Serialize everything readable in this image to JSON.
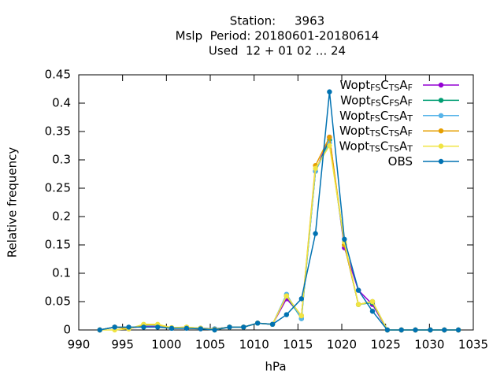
{
  "chart_data": {
    "type": "line",
    "title": [
      "Station:     3963",
      "Mslp  Period: 20180601-20180614",
      "Used  12 + 01 02 ... 24"
    ],
    "xlabel": "hPa",
    "ylabel": "Relative frequency",
    "x": [
      992.4,
      994.1,
      995.7,
      997.4,
      999.0,
      1000.6,
      1002.3,
      1003.9,
      1005.5,
      1007.2,
      1008.8,
      1010.4,
      1012.1,
      1013.7,
      1015.4,
      1017.0,
      1018.6,
      1020.3,
      1021.9,
      1023.5,
      1025.2,
      1026.8,
      1028.4,
      1030.1,
      1031.7,
      1033.3
    ],
    "series": [
      {
        "name": "Wopt_{FS}C_{TS}A_{F}",
        "color": "#9400d3",
        "values": [
          0,
          0.005,
          0.003,
          0.007,
          0.007,
          0.003,
          0.004,
          0.003,
          0.002,
          0.005,
          0.005,
          0.012,
          0.01,
          0.055,
          0.025,
          0.28,
          0.34,
          0.145,
          0.07,
          0.045,
          0,
          0,
          0,
          0,
          0,
          0
        ]
      },
      {
        "name": "Wopt_{FS}C_{FS}A_{F}",
        "color": "#009e73",
        "values": [
          0,
          0.005,
          0.003,
          0.008,
          0.008,
          0.003,
          0.004,
          0.003,
          0.002,
          0.005,
          0.005,
          0.012,
          0.01,
          0.06,
          0.02,
          0.28,
          0.335,
          0.15,
          0.045,
          0.048,
          0,
          0,
          0,
          0,
          0,
          0
        ]
      },
      {
        "name": "Wopt_{FS}C_{TS}A_{T}",
        "color": "#56b4e9",
        "values": [
          0,
          0.005,
          0.003,
          0.008,
          0.008,
          0.003,
          0.004,
          0.003,
          0.002,
          0.005,
          0.005,
          0.012,
          0.01,
          0.063,
          0.02,
          0.28,
          0.33,
          0.15,
          0.045,
          0.05,
          0,
          0,
          0,
          0,
          0,
          0
        ]
      },
      {
        "name": "Wopt_{TS}C_{TS}A_{F}",
        "color": "#e69f00",
        "values": [
          0,
          0.005,
          0.002,
          0.009,
          0.009,
          0.004,
          0.005,
          0.003,
          0.001,
          0.005,
          0.005,
          0.012,
          0.01,
          0.06,
          0.025,
          0.29,
          0.34,
          0.15,
          0.045,
          0.05,
          0,
          0,
          0,
          0,
          0,
          0
        ]
      },
      {
        "name": "Wopt_{TS}C_{TS}A_{T}",
        "color": "#f0e442",
        "values": [
          0,
          0,
          0.002,
          0.01,
          0.01,
          0.004,
          0.005,
          0.003,
          0,
          0.005,
          0.005,
          0.012,
          0.01,
          0.06,
          0.025,
          0.285,
          0.325,
          0.155,
          0.045,
          0.05,
          0,
          0,
          0,
          0,
          0,
          0
        ]
      },
      {
        "name": "OBS",
        "color": "#0072b2",
        "values": [
          0,
          0.005,
          0.005,
          0.005,
          0.005,
          0.003,
          0.003,
          0.002,
          0,
          0.005,
          0.005,
          0.012,
          0.01,
          0.027,
          0.055,
          0.17,
          0.42,
          0.16,
          0.07,
          0.033,
          0,
          0,
          0,
          0,
          0,
          0
        ]
      }
    ],
    "xlim": [
      990,
      1035
    ],
    "xticks": [
      990,
      995,
      1000,
      1005,
      1010,
      1015,
      1020,
      1025,
      1030,
      1035
    ],
    "ylim": [
      0,
      0.45
    ],
    "yticks": [
      0,
      0.05,
      0.1,
      0.15,
      0.2,
      0.25,
      0.3,
      0.35,
      0.4,
      0.45
    ],
    "legend": "top-right",
    "grid": false
  }
}
